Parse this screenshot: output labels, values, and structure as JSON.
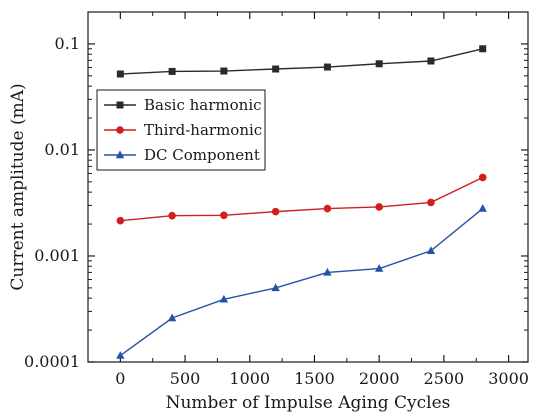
{
  "chart_data": {
    "type": "line",
    "title": "",
    "xlabel": "Number of Impulse Aging Cycles",
    "ylabel": "Current amplitude (mA)",
    "xlim": [
      -250,
      3150
    ],
    "ylim": [
      0.0001,
      0.2
    ],
    "yscale": "log",
    "grid": false,
    "legend_position": "upper-left",
    "x_ticks": [
      0,
      500,
      1000,
      1500,
      2000,
      2500,
      3000
    ],
    "x_tick_labels": [
      "0",
      "500",
      "1000",
      "1500",
      "2000",
      "2500",
      "3000"
    ],
    "y_ticks": [
      0.0001,
      0.001,
      0.01,
      0.1
    ],
    "y_tick_labels": [
      "0.0001",
      "0.001",
      "0.01",
      "0.1"
    ],
    "x": [
      0,
      400,
      800,
      1200,
      1600,
      2000,
      2400,
      2800
    ],
    "series": [
      {
        "name": "Basic harmonic",
        "color": "#2b2b2b",
        "marker": "square",
        "values": [
          0.052,
          0.055,
          0.0555,
          0.058,
          0.0605,
          0.065,
          0.069,
          0.09
        ]
      },
      {
        "name": "Third-harmonic",
        "color": "#d11f1f",
        "marker": "circle",
        "values": [
          0.00215,
          0.0024,
          0.00242,
          0.00262,
          0.0028,
          0.0029,
          0.0032,
          0.0055
        ]
      },
      {
        "name": "DC Component",
        "color": "#2453a6",
        "marker": "triangle",
        "values": [
          0.000115,
          0.00026,
          0.00039,
          0.0005,
          0.0007,
          0.00076,
          0.00112,
          0.0028
        ]
      }
    ]
  }
}
